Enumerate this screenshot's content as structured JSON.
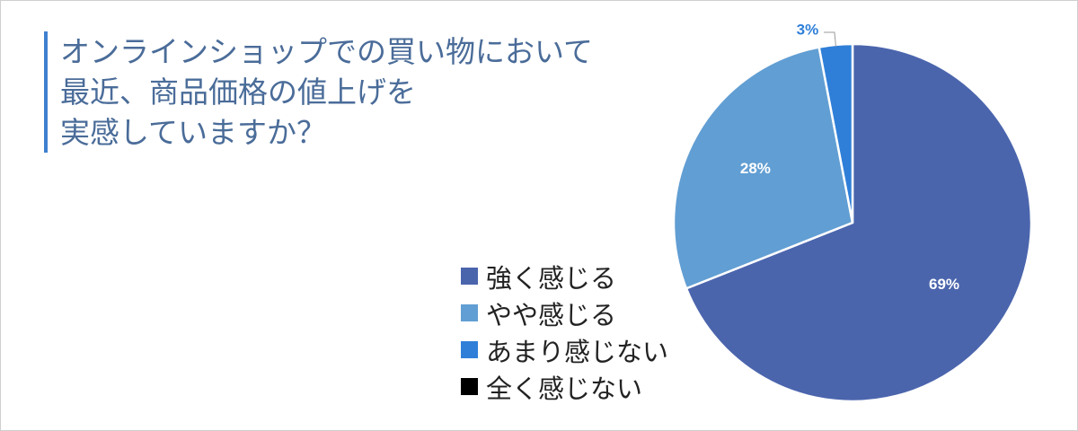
{
  "title": {
    "lines": [
      "オンラインショップでの買い物において",
      "最近、商品価格の値上げを",
      "実感していますか？"
    ]
  },
  "colors": {
    "title_text": "#4a6c99",
    "title_bar": "#3f7fcf"
  },
  "chart_data": {
    "type": "pie",
    "categories": [
      "強く感じる",
      "やや感じる",
      "あまり感じない",
      "全く感じない"
    ],
    "values": [
      69,
      28,
      3,
      0
    ],
    "value_labels": [
      "69%",
      "28%",
      "3%",
      ""
    ],
    "colors": [
      "#4b65ad",
      "#619ed3",
      "#2f7fd8",
      "#000000"
    ],
    "label_colors": [
      "#ffffff",
      "#ffffff",
      "#2f7fd8",
      "#000000"
    ],
    "legend_position": "left-bottom"
  }
}
